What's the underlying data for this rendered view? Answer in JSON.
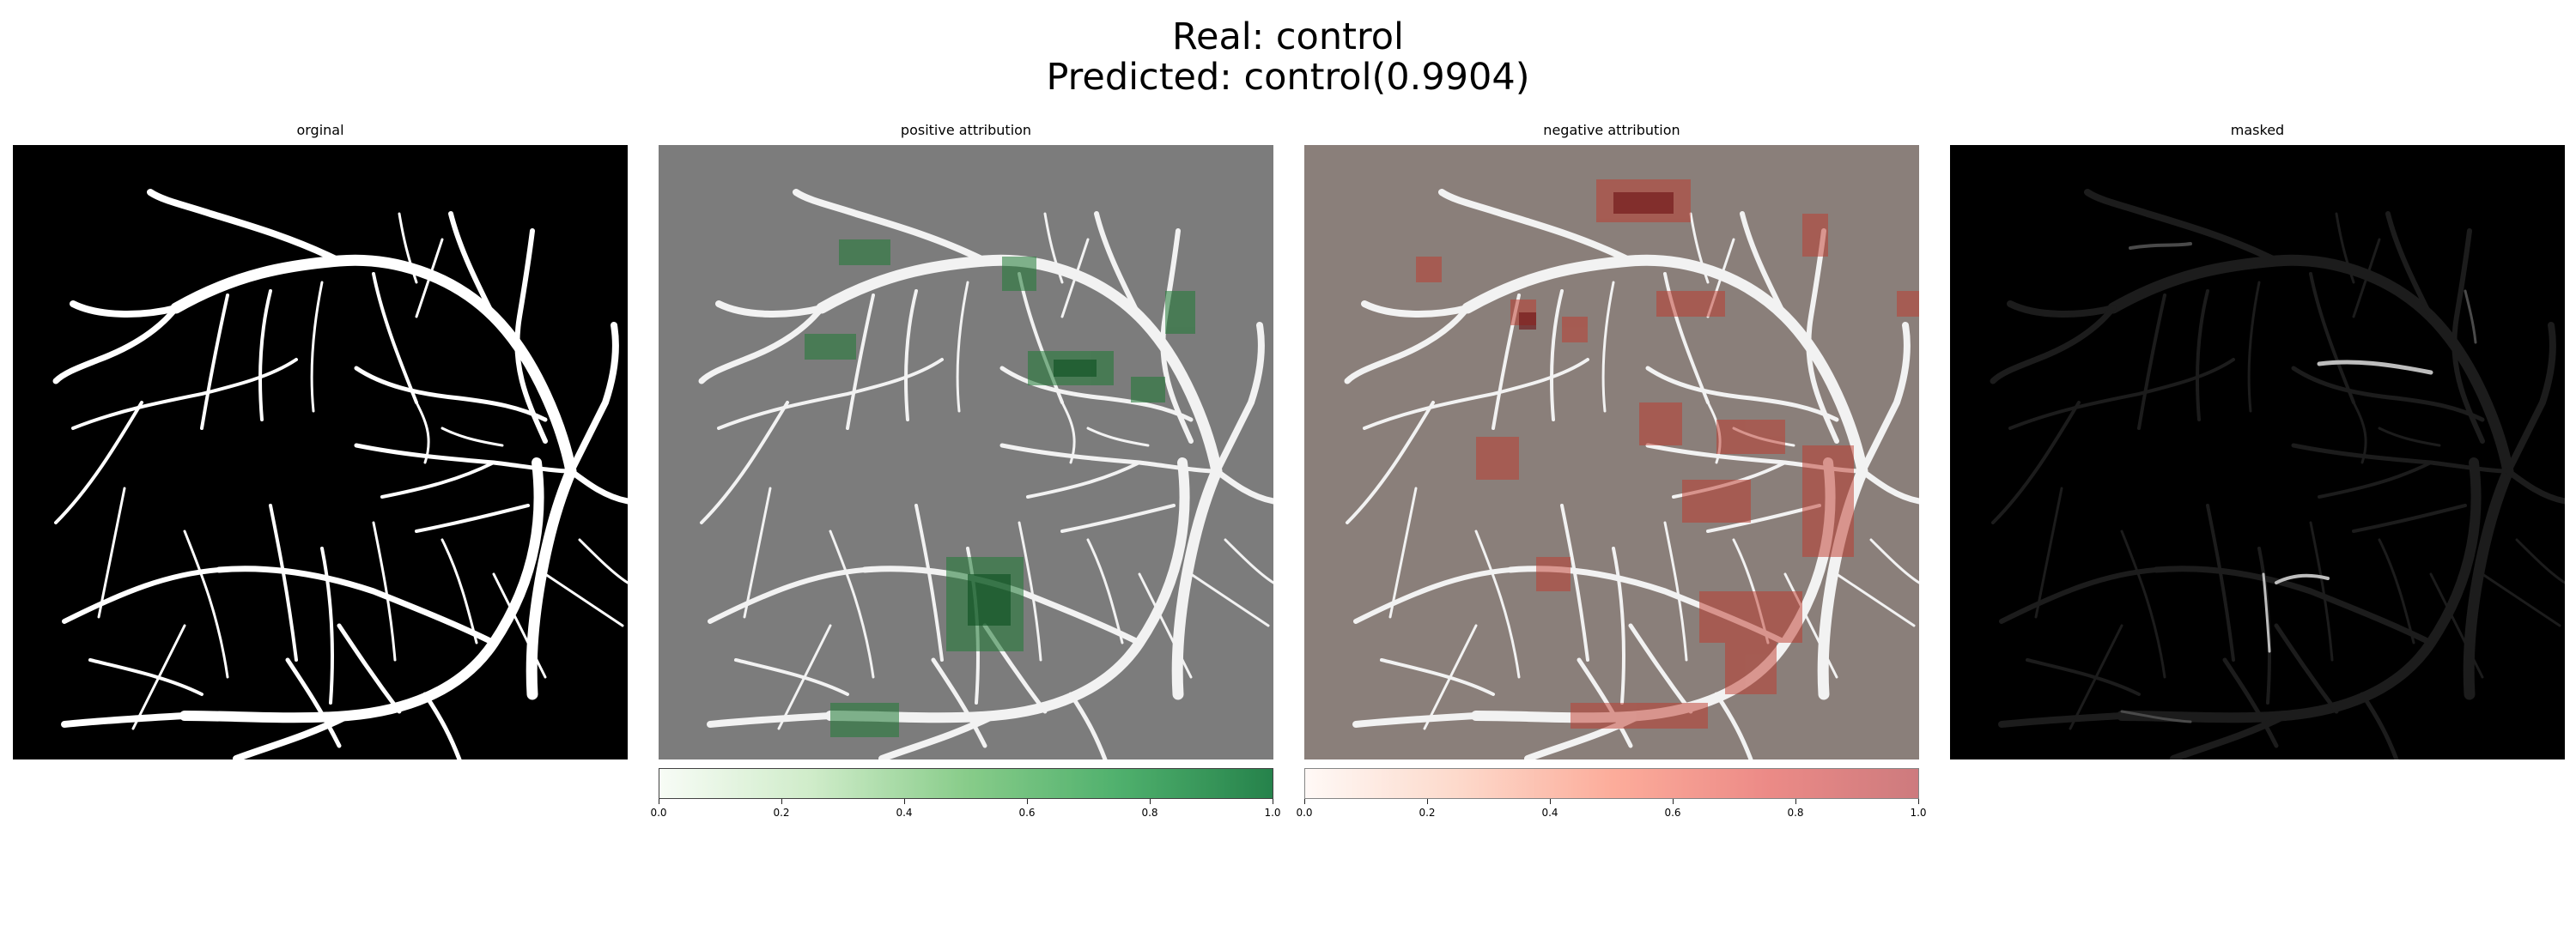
{
  "figure": {
    "title_line1": "Real: control",
    "title_line2": "Predicted: control(0.9904)"
  },
  "panels": [
    {
      "title": "orginal"
    },
    {
      "title": "positive attribution"
    },
    {
      "title": "negative attribution"
    },
    {
      "title": "masked"
    }
  ],
  "colorbars": [
    {
      "colormap": "Greens",
      "range": [
        0.0,
        1.0
      ],
      "ticks": [
        "0.0",
        "0.2",
        "0.4",
        "0.6",
        "0.8",
        "1.0"
      ],
      "color_low": "#f7fcf5",
      "color_high": "#006d2c"
    },
    {
      "colormap": "Reds",
      "range": [
        0.0,
        1.0
      ],
      "ticks": [
        "0.0",
        "0.2",
        "0.4",
        "0.6",
        "0.8",
        "1.0"
      ],
      "color_low": "#fff5f0",
      "color_high": "#a50f15"
    }
  ],
  "colors": {
    "vessel": "#ffffff",
    "background": "#000000",
    "overlay_gray": "#7c7c7c",
    "overlay_red_gray": "#8a7f7a"
  }
}
